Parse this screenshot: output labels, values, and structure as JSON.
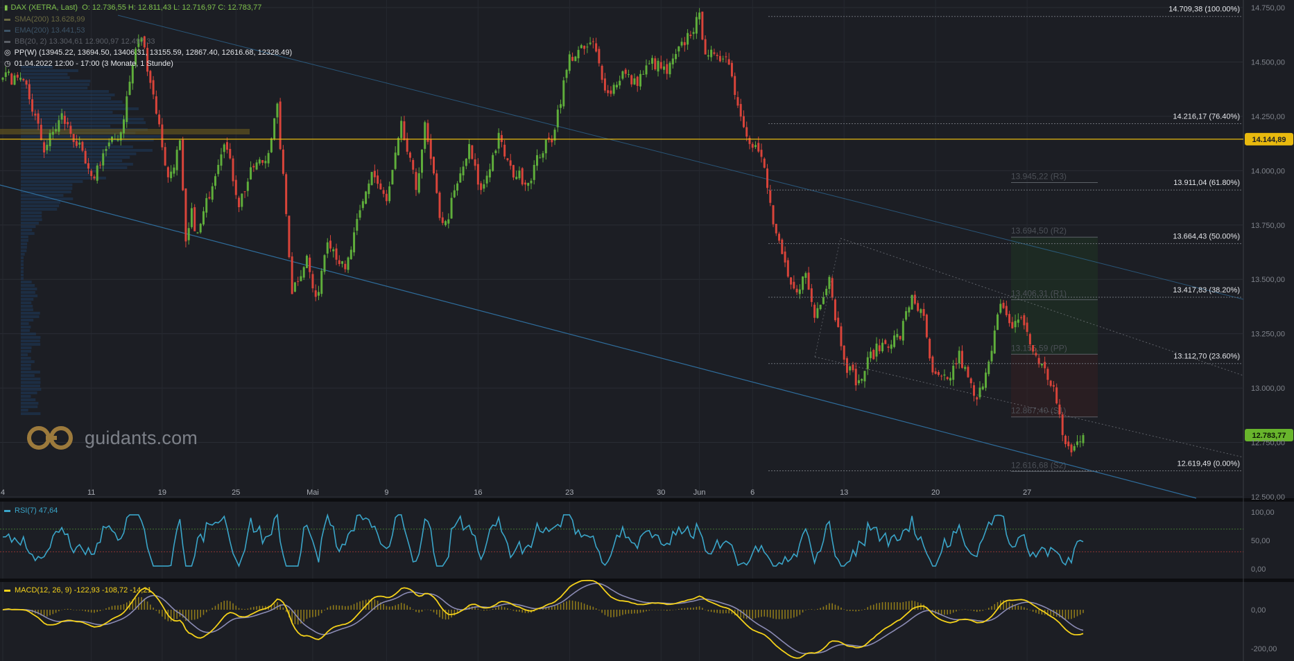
{
  "header": {
    "instrument": "DAX (XETRA, Last)",
    "ohlc": "O: 12.736,55   H: 12.811,43   L: 12.716,97   C: 12.783,77",
    "sma": "SMA(200)  13.628,99",
    "ema": "EMA(200)  13.441,53",
    "bb": "BB(20, 2)  13.304,61  12.900,97  12.497,33",
    "pp": "PP(W)  (13945.22, 13694.50, 13406.31, 13155.59, 12867.40, 12616.68, 12328.49)",
    "range": "01.04.2022 12:00 - 17:00  (3 Monate, 1 Stunde)"
  },
  "colors": {
    "background": "#1c1e24",
    "up": "#5fae3b",
    "down": "#d9443a",
    "channel": "#2f6d9c",
    "level": "#e8b90e",
    "rsi": "#3aa5c9",
    "macd": "#f5d21a",
    "signal": "#8b8bb4",
    "price_tag": "#68b52c"
  },
  "logo": {
    "text": "guidants.com",
    "icon": "guidants-logo-icon"
  },
  "chart_data": [
    {
      "type": "candlestick",
      "title": "DAX (XETRA, Last)",
      "x_labels": [
        "4",
        "11",
        "19",
        "25",
        "Mai",
        "9",
        "16",
        "23",
        "30",
        "Jun",
        "6",
        "13",
        "20",
        "27"
      ],
      "ylim": [
        12500,
        14750
      ],
      "y_ticks": [
        "14.750,00",
        "14.500,00",
        "14.250,00",
        "14.000,00",
        "13.750,00",
        "13.500,00",
        "13.250,00",
        "13.000,00",
        "12.750,00",
        "12.500,00"
      ],
      "y_tick_values": [
        14750,
        14500,
        14250,
        14000,
        13750,
        13500,
        13250,
        13000,
        12750,
        12500
      ],
      "path": [
        [
          0,
          14450
        ],
        [
          8,
          14380
        ],
        [
          14,
          14100
        ],
        [
          20,
          14250
        ],
        [
          26,
          14100
        ],
        [
          30,
          13950
        ],
        [
          34,
          14080
        ],
        [
          40,
          14180
        ],
        [
          45,
          14560
        ],
        [
          47,
          14620
        ],
        [
          52,
          14280
        ],
        [
          56,
          13960
        ],
        [
          60,
          14120
        ],
        [
          62,
          13650
        ],
        [
          64,
          13800
        ],
        [
          66,
          13700
        ],
        [
          70,
          13900
        ],
        [
          75,
          14150
        ],
        [
          80,
          13850
        ],
        [
          85,
          14020
        ],
        [
          89,
          14050
        ],
        [
          93,
          14280
        ],
        [
          96,
          13800
        ],
        [
          98,
          13450
        ],
        [
          103,
          13600
        ],
        [
          106,
          13390
        ],
        [
          110,
          13700
        ],
        [
          116,
          13530
        ],
        [
          120,
          13750
        ],
        [
          125,
          14000
        ],
        [
          130,
          13850
        ],
        [
          135,
          14200
        ],
        [
          140,
          13920
        ],
        [
          143,
          14200
        ],
        [
          148,
          13800
        ],
        [
          150,
          13750
        ],
        [
          152,
          13850
        ],
        [
          158,
          14100
        ],
        [
          162,
          13900
        ],
        [
          168,
          14150
        ],
        [
          172,
          14000
        ],
        [
          178,
          13950
        ],
        [
          182,
          14080
        ],
        [
          186,
          14150
        ],
        [
          192,
          14520
        ],
        [
          200,
          14580
        ],
        [
          205,
          14350
        ],
        [
          210,
          14450
        ],
        [
          214,
          14400
        ],
        [
          220,
          14500
        ],
        [
          225,
          14450
        ],
        [
          232,
          14620
        ],
        [
          236,
          14700
        ],
        [
          238,
          14560
        ],
        [
          242,
          14500
        ],
        [
          245,
          14550
        ],
        [
          250,
          14250
        ],
        [
          253,
          14150
        ],
        [
          256,
          14090
        ],
        [
          258,
          14000
        ],
        [
          261,
          13760
        ],
        [
          263,
          13650
        ],
        [
          266,
          13500
        ],
        [
          268,
          13440
        ],
        [
          272,
          13520
        ],
        [
          275,
          13330
        ],
        [
          280,
          13520
        ],
        [
          282,
          13330
        ],
        [
          286,
          13100
        ],
        [
          290,
          13020
        ],
        [
          294,
          13150
        ],
        [
          298,
          13200
        ],
        [
          304,
          13240
        ],
        [
          308,
          13430
        ],
        [
          312,
          13310
        ],
        [
          315,
          13050
        ],
        [
          320,
          13030
        ],
        [
          324,
          13150
        ],
        [
          330,
          12930
        ],
        [
          334,
          13140
        ],
        [
          338,
          13380
        ],
        [
          341,
          13280
        ],
        [
          345,
          13330
        ],
        [
          348,
          13200
        ],
        [
          352,
          13100
        ],
        [
          354,
          13050
        ],
        [
          356,
          13000
        ],
        [
          359,
          12780
        ],
        [
          362,
          12700
        ],
        [
          366,
          12800
        ]
      ],
      "fib_levels": [
        {
          "label": "14.709,38 (100.00%)",
          "value": 14709.38
        },
        {
          "label": "14.216,17 (76.40%)",
          "value": 14216.17
        },
        {
          "label": "13.911,04 (61.80%)",
          "value": 13911.04
        },
        {
          "label": "13.664,43 (50.00%)",
          "value": 13664.43
        },
        {
          "label": "13.417,83 (38.20%)",
          "value": 13417.83
        },
        {
          "label": "13.112,70 (23.60%)",
          "value": 13112.7
        },
        {
          "label": "12.619,49 (0.00%)",
          "value": 12619.49
        }
      ],
      "pivots": [
        {
          "label": "13.945,22 (R3)",
          "value": 13945.22
        },
        {
          "label": "13.694,50 (R2)",
          "value": 13694.5
        },
        {
          "label": "13.406,31 (R1)",
          "value": 13406.31
        },
        {
          "label": "13.155,59 (PP)",
          "value": 13155.59
        },
        {
          "label": "12.867,40 (S1)",
          "value": 12867.4
        },
        {
          "label": "12.616,68 (S2)",
          "value": 12616.68
        }
      ],
      "horizontal_level": {
        "label": "14.144,89",
        "value": 14144.89
      },
      "last_price": {
        "label": "12.783,77",
        "value": 12783.77
      }
    },
    {
      "type": "line",
      "title": "RSI(7)  47,64",
      "ylim": [
        -15,
        115
      ],
      "y_ticks": [
        "100,00",
        "50,00",
        "0,00"
      ],
      "y_tick_values": [
        100,
        50,
        0
      ],
      "levels": [
        70,
        30
      ],
      "last": 47.64
    },
    {
      "type": "line",
      "title": "MACD(12, 26, 9)  -122,93  -108,72  -14,21",
      "series": [
        {
          "name": "-122,93",
          "last": -122.93
        },
        {
          "name": "-108,72",
          "last": -108.72
        },
        {
          "name": "-14,21",
          "last": -14.21
        }
      ],
      "ylim": [
        -260,
        110
      ],
      "y_ticks": [
        "0,00",
        "-200,00"
      ],
      "y_tick_values": [
        0,
        -200
      ]
    }
  ]
}
